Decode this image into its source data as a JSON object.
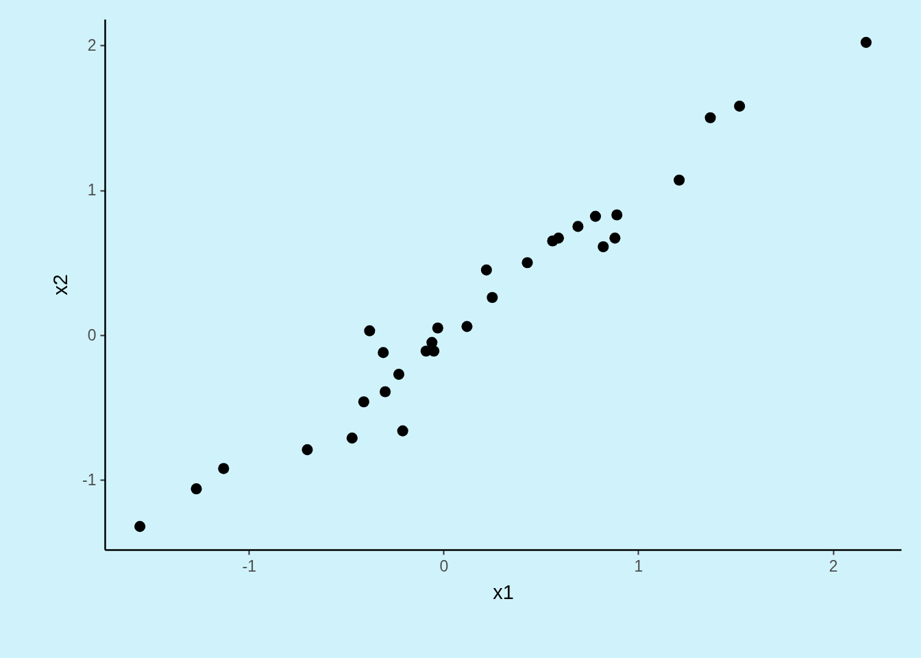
{
  "chart_data": {
    "type": "scatter",
    "xlabel": "x1",
    "ylabel": "x2",
    "xlim": [
      -1.74,
      2.35
    ],
    "ylim": [
      -1.48,
      2.18
    ],
    "xticks": [
      -1,
      0,
      1,
      2
    ],
    "yticks": [
      -1,
      0,
      1,
      2
    ],
    "grid": false,
    "marker": "circle",
    "series": [
      {
        "color": "#000000",
        "x": [
          -1.56,
          -1.27,
          -1.13,
          -0.7,
          -0.47,
          -0.41,
          -0.38,
          -0.31,
          -0.3,
          -0.23,
          -0.21,
          -0.09,
          -0.06,
          -0.05,
          -0.03,
          0.12,
          0.22,
          0.25,
          0.43,
          0.56,
          0.59,
          0.69,
          0.78,
          0.82,
          0.88,
          0.89,
          1.21,
          1.37,
          1.52,
          2.17
        ],
        "values": [
          -1.32,
          -1.06,
          -0.92,
          -0.79,
          -0.71,
          -0.46,
          0.03,
          -0.12,
          -0.39,
          -0.27,
          -0.66,
          -0.11,
          -0.05,
          -0.11,
          0.05,
          0.06,
          0.45,
          0.26,
          0.5,
          0.65,
          0.67,
          0.75,
          0.82,
          0.61,
          0.67,
          0.83,
          1.07,
          1.5,
          1.58,
          2.02
        ]
      }
    ]
  }
}
